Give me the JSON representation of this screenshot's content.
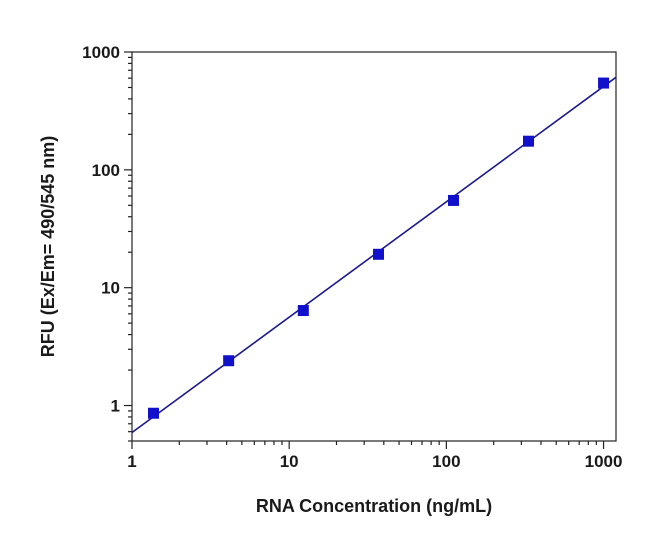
{
  "chart_data": {
    "type": "scatter",
    "title": "",
    "xlabel": "RNA Concentration (ng/mL)",
    "ylabel": "RFU (Ex/Em= 490/545 nm)",
    "xscale": "log",
    "yscale": "log",
    "xlim": [
      1,
      1200
    ],
    "ylim": [
      0.5,
      1000
    ],
    "xticks": [
      1,
      10,
      100,
      1000
    ],
    "xtick_labels": [
      "1",
      "10",
      "100",
      "1000"
    ],
    "yticks": [
      1,
      10,
      100,
      1000
    ],
    "ytick_labels": [
      "1",
      "10",
      "100",
      "1000"
    ],
    "grid": false,
    "legend": "none",
    "series": [
      {
        "marker": "square",
        "color": "#1111cc",
        "x": [
          1.37,
          4.12,
          12.3,
          37.0,
          111,
          333,
          1000
        ],
        "y": [
          0.86,
          2.4,
          6.4,
          19.2,
          55,
          175,
          545
        ]
      }
    ],
    "fit_line": {
      "color": "#1a1a8c",
      "x": [
        1,
        1200
      ],
      "y": [
        0.59,
        610
      ]
    }
  }
}
